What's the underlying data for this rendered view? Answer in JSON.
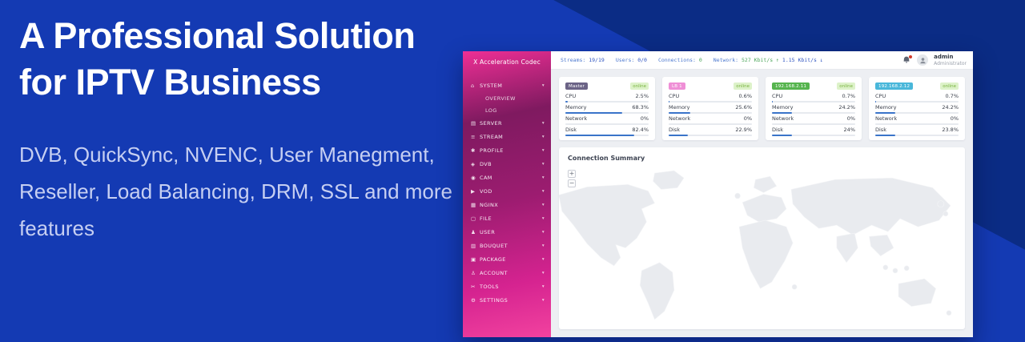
{
  "hero": {
    "title": "A Professional Solution for IPTV Business",
    "subtitle": "DVB, QuickSync, NVENC, User Manegment, Reseller, Load Balancing, DRM, SSL and more features",
    "bg_color": "#143ab3",
    "bg_dark_corner_color": "#0b2c85",
    "subtitle_color": "#c6cff2"
  },
  "dashboard": {
    "brand": "X Acceleration Codec",
    "theme": {
      "sidebar_pink": "#e0268f",
      "progress_blue": "#3a74c9",
      "online_green": "#79b340",
      "stat_label_blue": "#4d79cf",
      "stat_value_green": "#4ca65a"
    },
    "topbar": {
      "streams_label": "Streams:",
      "streams_value": "19/19",
      "users_label": "Users:",
      "users_value": "0/0",
      "connections_label": "Connections:",
      "connections_value": "0",
      "network_label": "Network:",
      "network_up": "527 Kbit/s ↑",
      "network_down": "1.15 Kbit/s ↓",
      "user_name": "admin",
      "user_role": "Administrator"
    },
    "sidebar": {
      "caret": "▾",
      "items": [
        {
          "icon": "⌂",
          "label": "SYSTEM",
          "children": [
            "OVERVIEW",
            "LOG"
          ]
        },
        {
          "icon": "▤",
          "label": "SERVER"
        },
        {
          "icon": "≡",
          "label": "STREAM"
        },
        {
          "icon": "✱",
          "label": "PROFILE"
        },
        {
          "icon": "◈",
          "label": "DVB"
        },
        {
          "icon": "◉",
          "label": "CAM"
        },
        {
          "icon": "▶",
          "label": "VOD"
        },
        {
          "icon": "▦",
          "label": "NGINX"
        },
        {
          "icon": "▢",
          "label": "FILE"
        },
        {
          "icon": "♟",
          "label": "USER"
        },
        {
          "icon": "▥",
          "label": "BOUQUET"
        },
        {
          "icon": "▣",
          "label": "PACKAGE"
        },
        {
          "icon": "♙",
          "label": "ACCOUNT"
        },
        {
          "icon": "✂",
          "label": "TOOLS"
        },
        {
          "icon": "⚙",
          "label": "SETTINGS"
        }
      ]
    },
    "cards": [
      {
        "name": "Master",
        "badge_color": "#6b6386",
        "status": "online",
        "rows": [
          {
            "label": "CPU",
            "value": "2.5%",
            "pct": 2.5
          },
          {
            "label": "Memory",
            "value": "68.3%",
            "pct": 68.3
          },
          {
            "label": "Network",
            "value": "0%",
            "pct": 0
          },
          {
            "label": "Disk",
            "value": "82.4%",
            "pct": 82.4
          }
        ]
      },
      {
        "name": "LB 1",
        "badge_color": "#ef8fd6",
        "status": "online",
        "rows": [
          {
            "label": "CPU",
            "value": "0.6%",
            "pct": 0.6
          },
          {
            "label": "Memory",
            "value": "25.6%",
            "pct": 25.6
          },
          {
            "label": "Network",
            "value": "0%",
            "pct": 0
          },
          {
            "label": "Disk",
            "value": "22.9%",
            "pct": 22.9
          }
        ]
      },
      {
        "name": "192.168.2.11",
        "badge_color": "#56b44e",
        "status": "online",
        "rows": [
          {
            "label": "CPU",
            "value": "0.7%",
            "pct": 0.7
          },
          {
            "label": "Memory",
            "value": "24.2%",
            "pct": 24.2
          },
          {
            "label": "Network",
            "value": "0%",
            "pct": 0
          },
          {
            "label": "Disk",
            "value": "24%",
            "pct": 24
          }
        ]
      },
      {
        "name": "192.168.2.12",
        "badge_color": "#49b7da",
        "status": "online",
        "rows": [
          {
            "label": "CPU",
            "value": "0.7%",
            "pct": 0.7
          },
          {
            "label": "Memory",
            "value": "24.2%",
            "pct": 24.2
          },
          {
            "label": "Network",
            "value": "0%",
            "pct": 0
          },
          {
            "label": "Disk",
            "value": "23.8%",
            "pct": 23.8
          }
        ]
      }
    ],
    "map_panel": {
      "title": "Connection Summary",
      "zoom_in": "+",
      "zoom_out": "−"
    }
  }
}
